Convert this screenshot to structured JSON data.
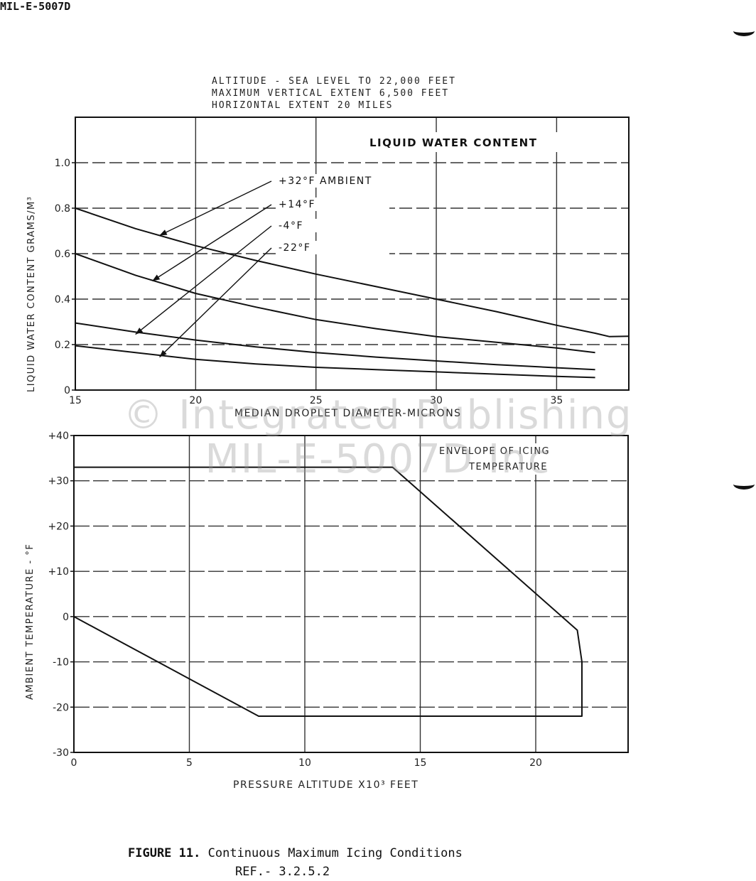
{
  "header": {
    "doc_id": "MIL-E-5007D"
  },
  "caption": {
    "figure_label": "FIGURE 11.",
    "figure_title": "Continuous Maximum Icing Conditions",
    "reference": "REF.-   3.2.5.2"
  },
  "watermark": {
    "line1": "© Integrated Publishing",
    "line2": "MIL-E-5007D Inc"
  },
  "chart_data": [
    {
      "type": "line",
      "header_lines": [
        "ALTITUDE - SEA LEVEL TO 22,000 FEET",
        "MAXIMUM VERTICAL EXTENT 6,500 FEET",
        "HORIZONTAL EXTENT 20 MILES"
      ],
      "inner_title": "LIQUID WATER CONTENT",
      "xlabel": "MEDIAN DROPLET DIAMETER-MICRONS",
      "ylabel": "LIQUID WATER CONTENT GRAMS/M³",
      "xlim": [
        15,
        38
      ],
      "ylim": [
        0,
        1.2
      ],
      "x_ticks": [
        15,
        20,
        25,
        30,
        35
      ],
      "x_tick_labels": [
        "15",
        "20",
        "25",
        "30",
        "35"
      ],
      "y_ticks": [
        0,
        0.2,
        0.4,
        0.6,
        0.8,
        1.0
      ],
      "y_tick_labels": [
        "0",
        "0.2",
        "0.4",
        "0.6",
        "0.8",
        "1.0"
      ],
      "grid": true,
      "series": [
        {
          "name": "+32°F AMBIENT",
          "x": [
            15,
            17.5,
            20,
            22.5,
            25,
            27.5,
            30,
            32.5,
            35,
            36.6,
            37.2,
            38
          ],
          "y": [
            0.8,
            0.71,
            0.635,
            0.57,
            0.51,
            0.455,
            0.4,
            0.345,
            0.285,
            0.25,
            0.235,
            0.237
          ]
        },
        {
          "name": "+14°F",
          "x": [
            15,
            17.5,
            20,
            22.5,
            25,
            27.5,
            30,
            32.5,
            35,
            36.6
          ],
          "y": [
            0.6,
            0.505,
            0.425,
            0.365,
            0.31,
            0.27,
            0.235,
            0.21,
            0.185,
            0.165
          ]
        },
        {
          "name": "-4°F",
          "x": [
            15,
            17.5,
            20,
            22.5,
            25,
            27.5,
            30,
            32.5,
            35,
            36.6
          ],
          "y": [
            0.295,
            0.255,
            0.22,
            0.19,
            0.165,
            0.145,
            0.128,
            0.112,
            0.098,
            0.09
          ]
        },
        {
          "name": "-22°F",
          "x": [
            15,
            17.5,
            20,
            22.5,
            25,
            27.5,
            30,
            32.5,
            35,
            36.6
          ],
          "y": [
            0.195,
            0.165,
            0.135,
            0.115,
            0.1,
            0.09,
            0.08,
            0.07,
            0.06,
            0.055
          ]
        }
      ],
      "annotations": [
        {
          "text": "+32°F AMBIENT",
          "points_to_x": 18.5,
          "points_to_y": 0.68
        },
        {
          "text": "+14°F",
          "points_to_x": 18.2,
          "points_to_y": 0.48
        },
        {
          "text": "-4°F",
          "points_to_x": 17.5,
          "points_to_y": 0.245
        },
        {
          "text": "-22°F",
          "points_to_x": 18.5,
          "points_to_y": 0.145
        }
      ]
    },
    {
      "type": "line",
      "inner_title_lines": [
        "ENVELOPE OF ICING",
        "TEMPERATURE"
      ],
      "xlabel": "PRESSURE ALTITUDE X10³ FEET",
      "ylabel": "AMBIENT TEMPERATURE - °F",
      "xlim": [
        0,
        24
      ],
      "ylim": [
        -30,
        40
      ],
      "x_ticks": [
        0,
        5,
        10,
        15,
        20
      ],
      "x_tick_labels": [
        "0",
        "5",
        "10",
        "15",
        "20"
      ],
      "y_ticks": [
        -30,
        -20,
        -10,
        0,
        10,
        20,
        30,
        40
      ],
      "y_tick_labels": [
        "-30",
        "-20",
        "-10",
        "0",
        "+10",
        "+20",
        "+30",
        "+40"
      ],
      "grid": true,
      "series": [
        {
          "x": [
            0,
            13.8,
            21.8,
            22,
            22,
            8,
            0
          ],
          "y": [
            33,
            33,
            -3,
            -10,
            -22,
            -22,
            0
          ]
        }
      ]
    }
  ]
}
